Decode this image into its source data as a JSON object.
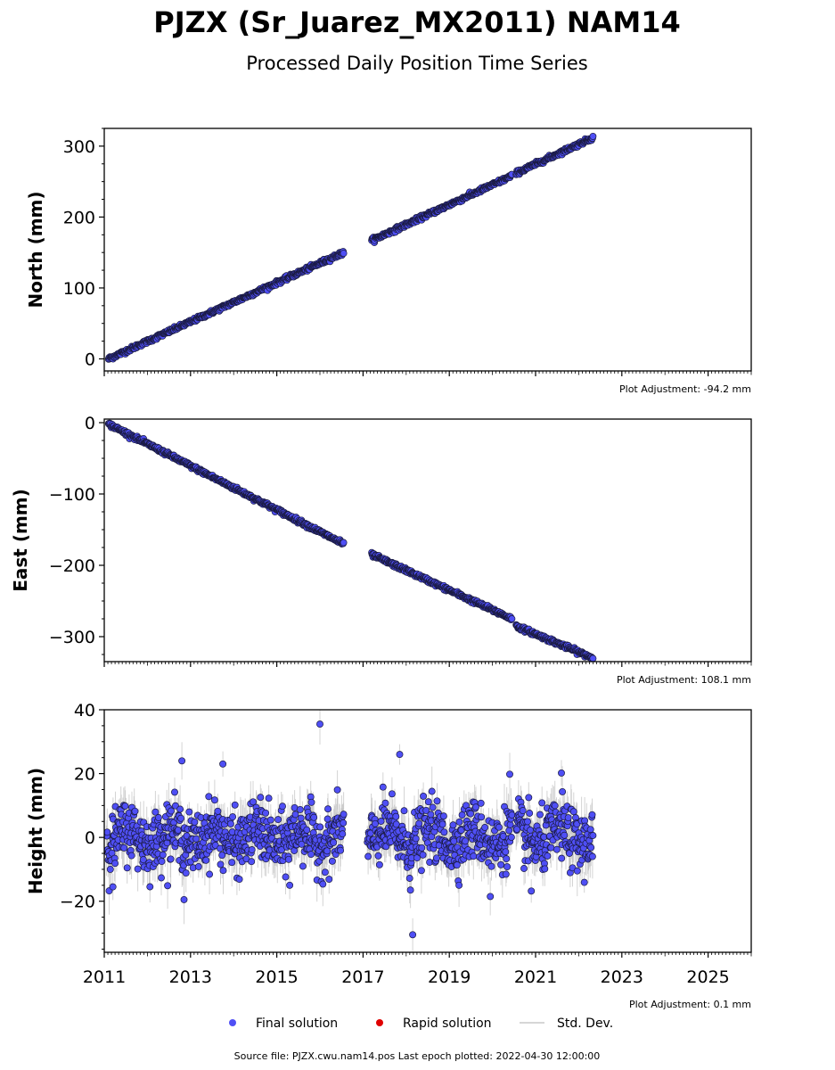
{
  "title": "PJZX (Sr_Juarez_MX2011) NAM14",
  "subtitle": "Processed Daily Position Time Series",
  "colors": {
    "final": "#4f4ff5",
    "rapid": "#e00000",
    "stddev": "#bdbdbd",
    "edge": "#1a1a40"
  },
  "legend": {
    "final": "Final solution",
    "rapid": "Rapid solution",
    "stddev": "Std. Dev."
  },
  "footer": "Source file: PJZX.cwu.nam14.pos  Last epoch plotted: 2022-04-30 12:00:00",
  "chart_data": [
    {
      "type": "scatter",
      "ylabel": "North (mm)",
      "adjustment": "Plot Adjustment: -94.2 mm",
      "xlim": [
        2011.0,
        2026.0
      ],
      "ylim": [
        -17,
        325
      ],
      "yticks": [
        0,
        100,
        200,
        300
      ],
      "ytick_labels": [
        "0",
        "100",
        "200",
        "300"
      ],
      "series": [
        {
          "x": [
            2011.1,
            2016.55
          ],
          "y": [
            0,
            150
          ]
        },
        {
          "x": [
            2017.2,
            2020.45
          ],
          "y": [
            167,
            258
          ]
        },
        {
          "x": [
            2020.55,
            2022.33
          ],
          "y": [
            262,
            312
          ]
        }
      ]
    },
    {
      "type": "scatter",
      "ylabel": "East (mm)",
      "adjustment": "Plot Adjustment: 108.1 mm",
      "xlim": [
        2011.0,
        2026.0
      ],
      "ylim": [
        -335,
        5
      ],
      "yticks": [
        0,
        -100,
        -200,
        -300
      ],
      "ytick_labels": [
        "0",
        "−100",
        "−200",
        "−300"
      ],
      "series": [
        {
          "x": [
            2011.1,
            2016.55
          ],
          "y": [
            -2,
            -170
          ]
        },
        {
          "x": [
            2017.2,
            2020.45
          ],
          "y": [
            -185,
            -275
          ]
        },
        {
          "x": [
            2020.55,
            2022.33
          ],
          "y": [
            -285,
            -330
          ]
        }
      ]
    },
    {
      "type": "scatter",
      "ylabel": "Height (mm)",
      "adjustment": "Plot Adjustment: 0.1 mm",
      "xlim": [
        2011.0,
        2026.0
      ],
      "ylim": [
        -36,
        40
      ],
      "yticks": [
        40,
        20,
        0,
        -20
      ],
      "ytick_labels": [
        "40",
        "20",
        "0",
        "−20"
      ],
      "xticks": [
        2011,
        2013,
        2015,
        2017,
        2019,
        2021,
        2023,
        2025
      ],
      "xtick_labels": [
        "2011",
        "2013",
        "2015",
        "2017",
        "2019",
        "2021",
        "2023",
        "2025"
      ],
      "segments": [
        [
          2011.05,
          2016.55
        ],
        [
          2017.1,
          2020.45
        ],
        [
          2020.55,
          2022.33
        ]
      ],
      "outliers": [
        {
          "x": 2016.0,
          "y": 35.5
        },
        {
          "x": 2017.85,
          "y": 26.0
        },
        {
          "x": 2018.15,
          "y": -30.5
        },
        {
          "x": 2012.8,
          "y": 24.0
        },
        {
          "x": 2013.75,
          "y": 23.0
        },
        {
          "x": 2012.85,
          "y": -19.5
        },
        {
          "x": 2011.2,
          "y": -15.5
        },
        {
          "x": 2015.3,
          "y": -15.0
        },
        {
          "x": 2019.95,
          "y": -18.5
        },
        {
          "x": 2020.9,
          "y": -16.8
        },
        {
          "x": 2020.4,
          "y": 19.8
        },
        {
          "x": 2021.6,
          "y": 20.2
        },
        {
          "x": 2018.1,
          "y": -16.5
        }
      ]
    }
  ]
}
